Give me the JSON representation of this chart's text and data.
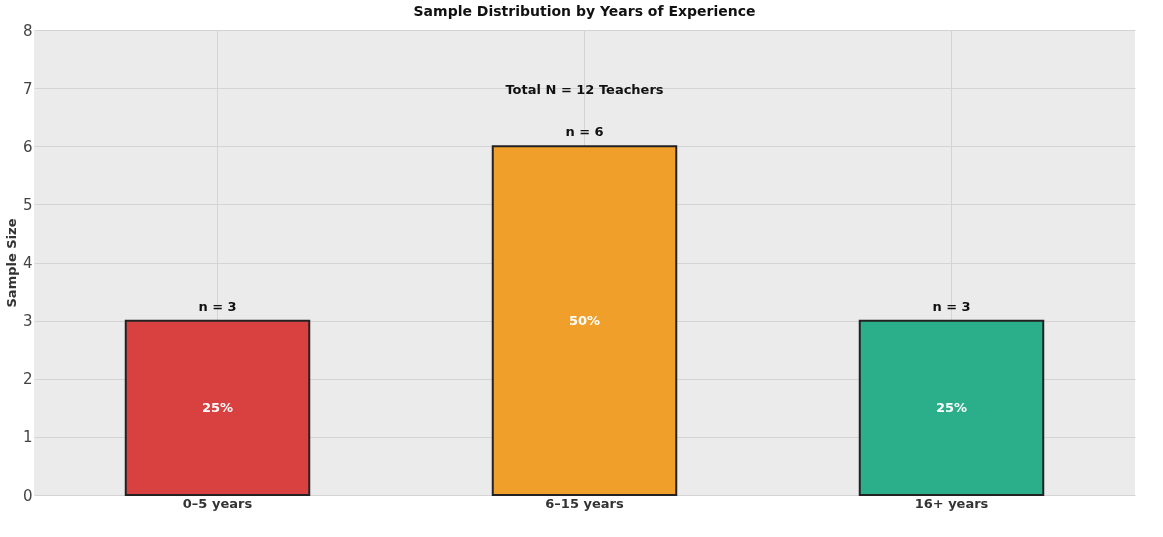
{
  "chart_data": {
    "type": "bar",
    "title": "Sample Distribution by Years of Experience",
    "ylabel": "Sample Size",
    "categories": [
      "0–5 years",
      "6–15 years",
      "16+ years"
    ],
    "values": [
      3,
      6,
      3
    ],
    "colors": [
      "#d94040",
      "#f0a02a",
      "#2aaf8a"
    ],
    "value_labels": [
      "n = 3",
      "n = 6",
      "n = 3"
    ],
    "annotations": [
      "25%",
      "50%",
      "25%",
      "Total N = 12 Teachers"
    ],
    "ylim": [
      0,
      8
    ],
    "yticks": [
      0,
      1,
      2,
      3,
      4,
      5,
      6,
      7,
      8
    ],
    "grid": true
  }
}
